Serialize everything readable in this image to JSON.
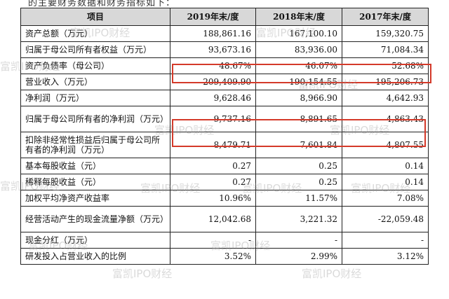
{
  "top_caption": "的主要财务数据和财务指标如下：",
  "table": {
    "headers": [
      "项目",
      "2019年末/度",
      "2018年末/度",
      "2017年末/度"
    ],
    "rows": [
      {
        "label": "资产总额（万元）",
        "values": [
          "188,861.16",
          "167,100.10",
          "159,320.75"
        ]
      },
      {
        "label": "归属于母公司所有者权益（万元）",
        "values": [
          "93,673.16",
          "83,936.00",
          "71,084.34"
        ]
      },
      {
        "label": "资产负债率（母公司）",
        "values": [
          "48.67%",
          "46.07%",
          "52.68%"
        ]
      },
      {
        "label": "营业收入（万元）",
        "values": [
          "209,409.90",
          "190,154.55",
          "195,206.73"
        ]
      },
      {
        "label": "净利润（万元）",
        "values": [
          "9,628.46",
          "8,966.90",
          "4,642.93"
        ]
      },
      {
        "label": "归属于母公司所有者的净利润（万元）",
        "values": [
          "9,737.16",
          "8,891.65",
          "4,863.43"
        ]
      },
      {
        "label": "扣除非经常性损益后归属于母公司所有者的净利润（万元）",
        "values": [
          "8,479.71",
          "7,601.84",
          "4,807.55"
        ]
      },
      {
        "label": "基本每股收益（元）",
        "values": [
          "0.27",
          "0.25",
          "0.14"
        ]
      },
      {
        "label": "稀释每股收益（元）",
        "values": [
          "0.27",
          "0.25",
          "0.14"
        ]
      },
      {
        "label": "加权平均净资产收益率",
        "values": [
          "10.96%",
          "11.57%",
          "7.08%"
        ]
      },
      {
        "label": "经营活动产生的现金流量净额（万元）",
        "values": [
          "12,042.68",
          "3,221.32",
          "-22,059.48"
        ]
      },
      {
        "label": "现金分红（万元）",
        "values": [
          "-",
          "-",
          "-"
        ]
      },
      {
        "label": "研发投入占营业收入的比例",
        "values": [
          "3.52%",
          "2.99%",
          "3.12%"
        ]
      }
    ]
  },
  "highlight_color": "#d43a2a",
  "watermark": "富凯IPO财经"
}
